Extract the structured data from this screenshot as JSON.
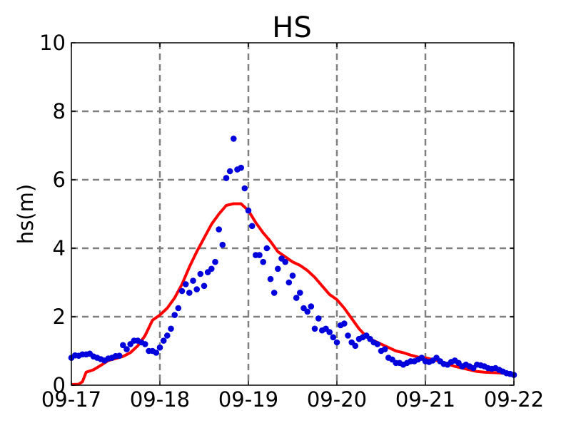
{
  "chart_data": {
    "type": "line",
    "title": "HS",
    "xlabel": "",
    "ylabel": "hs(m)",
    "xlim": [
      "09-17",
      "09-22"
    ],
    "ylim": [
      0,
      10
    ],
    "x_ticks": [
      "09-17",
      "09-18",
      "09-19",
      "09-20",
      "09-21",
      "09-22"
    ],
    "y_ticks": [
      "0",
      "2",
      "4",
      "6",
      "8",
      "10"
    ],
    "grid": true,
    "colors": {
      "model": "#ff0000",
      "observed": "#0000dd"
    },
    "series": [
      {
        "style": "line",
        "color": "#ff0000",
        "points": [
          [
            "09-17 00:00",
            0.02
          ],
          [
            "09-17 02:00",
            0.03
          ],
          [
            "09-17 03:00",
            0.1
          ],
          [
            "09-17 04:00",
            0.38
          ],
          [
            "09-17 06:00",
            0.45
          ],
          [
            "09-17 08:00",
            0.58
          ],
          [
            "09-17 10:00",
            0.72
          ],
          [
            "09-17 12:00",
            0.78
          ],
          [
            "09-17 14:00",
            0.84
          ],
          [
            "09-17 16:00",
            0.95
          ],
          [
            "09-17 18:00",
            1.15
          ],
          [
            "09-17 20:00",
            1.45
          ],
          [
            "09-17 22:00",
            1.9
          ],
          [
            "09-18 00:00",
            2.05
          ],
          [
            "09-18 02:00",
            2.25
          ],
          [
            "09-18 04:00",
            2.55
          ],
          [
            "09-18 06:00",
            2.95
          ],
          [
            "09-18 08:00",
            3.45
          ],
          [
            "09-18 10:00",
            3.9
          ],
          [
            "09-18 12:00",
            4.3
          ],
          [
            "09-18 14:00",
            4.7
          ],
          [
            "09-18 16:00",
            5.0
          ],
          [
            "09-18 18:00",
            5.25
          ],
          [
            "09-18 20:00",
            5.3
          ],
          [
            "09-18 22:00",
            5.3
          ],
          [
            "09-19 00:00",
            5.1
          ],
          [
            "09-19 02:00",
            4.75
          ],
          [
            "09-19 04:00",
            4.45
          ],
          [
            "09-19 06:00",
            4.2
          ],
          [
            "09-19 08:00",
            3.9
          ],
          [
            "09-19 10:00",
            3.75
          ],
          [
            "09-19 12:00",
            3.6
          ],
          [
            "09-19 14:00",
            3.5
          ],
          [
            "09-19 16:00",
            3.35
          ],
          [
            "09-19 18:00",
            3.15
          ],
          [
            "09-19 20:00",
            2.9
          ],
          [
            "09-19 22:00",
            2.65
          ],
          [
            "09-20 00:00",
            2.5
          ],
          [
            "09-20 02:00",
            2.25
          ],
          [
            "09-20 04:00",
            1.95
          ],
          [
            "09-20 06:00",
            1.65
          ],
          [
            "09-20 08:00",
            1.42
          ],
          [
            "09-20 10:00",
            1.3
          ],
          [
            "09-20 12:00",
            1.2
          ],
          [
            "09-20 14:00",
            1.1
          ],
          [
            "09-20 16:00",
            1.0
          ],
          [
            "09-20 18:00",
            0.95
          ],
          [
            "09-20 20:00",
            0.88
          ],
          [
            "09-20 22:00",
            0.82
          ],
          [
            "09-21 00:00",
            0.8
          ],
          [
            "09-21 02:00",
            0.75
          ],
          [
            "09-21 04:00",
            0.7
          ],
          [
            "09-21 06:00",
            0.62
          ],
          [
            "09-21 08:00",
            0.55
          ],
          [
            "09-21 10:00",
            0.5
          ],
          [
            "09-21 12:00",
            0.45
          ],
          [
            "09-21 14:00",
            0.4
          ],
          [
            "09-21 16:00",
            0.38
          ],
          [
            "09-21 18:00",
            0.37
          ],
          [
            "09-21 20:00",
            0.36
          ],
          [
            "09-21 22:00",
            0.34
          ],
          [
            "09-22 00:00",
            0.3
          ]
        ]
      },
      {
        "style": "scatter",
        "color": "#0000dd",
        "points": [
          [
            "09-17 00:00",
            0.8
          ],
          [
            "09-17 01:00",
            0.87
          ],
          [
            "09-17 02:00",
            0.86
          ],
          [
            "09-17 03:00",
            0.9
          ],
          [
            "09-17 04:00",
            0.9
          ],
          [
            "09-17 05:00",
            0.92
          ],
          [
            "09-17 06:00",
            0.84
          ],
          [
            "09-17 07:00",
            0.8
          ],
          [
            "09-17 08:00",
            0.76
          ],
          [
            "09-17 09:00",
            0.72
          ],
          [
            "09-17 10:00",
            0.78
          ],
          [
            "09-17 11:00",
            0.8
          ],
          [
            "09-17 12:00",
            0.85
          ],
          [
            "09-17 13:00",
            0.86
          ],
          [
            "09-17 14:00",
            1.17
          ],
          [
            "09-17 15:00",
            1.05
          ],
          [
            "09-17 16:00",
            1.2
          ],
          [
            "09-17 17:00",
            1.3
          ],
          [
            "09-17 18:00",
            1.3
          ],
          [
            "09-17 19:00",
            1.25
          ],
          [
            "09-17 20:00",
            1.2
          ],
          [
            "09-17 21:00",
            1.0
          ],
          [
            "09-17 22:00",
            1.0
          ],
          [
            "09-17 23:00",
            0.95
          ],
          [
            "09-18 00:00",
            1.1
          ],
          [
            "09-18 01:00",
            1.3
          ],
          [
            "09-18 02:00",
            1.45
          ],
          [
            "09-18 03:00",
            1.65
          ],
          [
            "09-18 04:00",
            2.05
          ],
          [
            "09-18 05:00",
            2.25
          ],
          [
            "09-18 06:00",
            2.75
          ],
          [
            "09-18 07:00",
            2.95
          ],
          [
            "09-18 08:00",
            2.7
          ],
          [
            "09-18 09:00",
            3.05
          ],
          [
            "09-18 10:00",
            2.8
          ],
          [
            "09-18 11:00",
            3.25
          ],
          [
            "09-18 12:00",
            2.9
          ],
          [
            "09-18 13:00",
            3.3
          ],
          [
            "09-18 14:00",
            3.4
          ],
          [
            "09-18 15:00",
            3.6
          ],
          [
            "09-18 16:00",
            4.55
          ],
          [
            "09-18 17:00",
            4.1
          ],
          [
            "09-18 18:00",
            6.05
          ],
          [
            "09-18 19:00",
            6.25
          ],
          [
            "09-18 20:00",
            7.2
          ],
          [
            "09-18 21:00",
            6.3
          ],
          [
            "09-18 22:00",
            6.35
          ],
          [
            "09-18 23:00",
            5.75
          ],
          [
            "09-19 00:00",
            5.1
          ],
          [
            "09-19 01:00",
            4.65
          ],
          [
            "09-19 02:00",
            3.8
          ],
          [
            "09-19 03:00",
            3.8
          ],
          [
            "09-19 04:00",
            3.6
          ],
          [
            "09-19 05:00",
            4.0
          ],
          [
            "09-19 06:00",
            3.1
          ],
          [
            "09-19 07:00",
            2.7
          ],
          [
            "09-19 08:00",
            3.4
          ],
          [
            "09-19 09:00",
            3.7
          ],
          [
            "09-19 10:00",
            3.6
          ],
          [
            "09-19 11:00",
            3.0
          ],
          [
            "09-19 12:00",
            3.2
          ],
          [
            "09-19 13:00",
            2.55
          ],
          [
            "09-19 14:00",
            2.7
          ],
          [
            "09-19 15:00",
            2.25
          ],
          [
            "09-19 16:00",
            2.15
          ],
          [
            "09-19 17:00",
            2.3
          ],
          [
            "09-19 18:00",
            1.65
          ],
          [
            "09-19 19:00",
            1.95
          ],
          [
            "09-19 20:00",
            1.6
          ],
          [
            "09-19 21:00",
            1.65
          ],
          [
            "09-19 22:00",
            1.55
          ],
          [
            "09-19 23:00",
            1.4
          ],
          [
            "09-20 00:00",
            1.25
          ],
          [
            "09-20 01:00",
            1.75
          ],
          [
            "09-20 02:00",
            1.8
          ],
          [
            "09-20 03:00",
            1.45
          ],
          [
            "09-20 04:00",
            1.25
          ],
          [
            "09-20 05:00",
            1.15
          ],
          [
            "09-20 06:00",
            1.35
          ],
          [
            "09-20 07:00",
            1.4
          ],
          [
            "09-20 08:00",
            1.45
          ],
          [
            "09-20 09:00",
            1.35
          ],
          [
            "09-20 10:00",
            1.25
          ],
          [
            "09-20 11:00",
            1.2
          ],
          [
            "09-20 12:00",
            1.0
          ],
          [
            "09-20 13:00",
            1.05
          ],
          [
            "09-20 14:00",
            0.8
          ],
          [
            "09-20 15:00",
            0.75
          ],
          [
            "09-20 16:00",
            0.65
          ],
          [
            "09-20 17:00",
            0.65
          ],
          [
            "09-20 18:00",
            0.6
          ],
          [
            "09-20 19:00",
            0.65
          ],
          [
            "09-20 20:00",
            0.7
          ],
          [
            "09-20 21:00",
            0.7
          ],
          [
            "09-20 22:00",
            0.75
          ],
          [
            "09-20 23:00",
            0.8
          ],
          [
            "09-21 00:00",
            0.7
          ],
          [
            "09-21 01:00",
            0.68
          ],
          [
            "09-21 02:00",
            0.72
          ],
          [
            "09-21 03:00",
            0.8
          ],
          [
            "09-21 04:00",
            0.7
          ],
          [
            "09-21 05:00",
            0.62
          ],
          [
            "09-21 06:00",
            0.6
          ],
          [
            "09-21 07:00",
            0.68
          ],
          [
            "09-21 08:00",
            0.72
          ],
          [
            "09-21 09:00",
            0.65
          ],
          [
            "09-21 10:00",
            0.55
          ],
          [
            "09-21 11:00",
            0.6
          ],
          [
            "09-21 12:00",
            0.55
          ],
          [
            "09-21 13:00",
            0.5
          ],
          [
            "09-21 14:00",
            0.6
          ],
          [
            "09-21 15:00",
            0.58
          ],
          [
            "09-21 16:00",
            0.55
          ],
          [
            "09-21 17:00",
            0.5
          ],
          [
            "09-21 18:00",
            0.48
          ],
          [
            "09-21 19:00",
            0.5
          ],
          [
            "09-21 20:00",
            0.45
          ],
          [
            "09-21 21:00",
            0.4
          ],
          [
            "09-21 22:00",
            0.35
          ],
          [
            "09-21 23:00",
            0.33
          ],
          [
            "09-22 00:00",
            0.3
          ]
        ]
      }
    ]
  }
}
